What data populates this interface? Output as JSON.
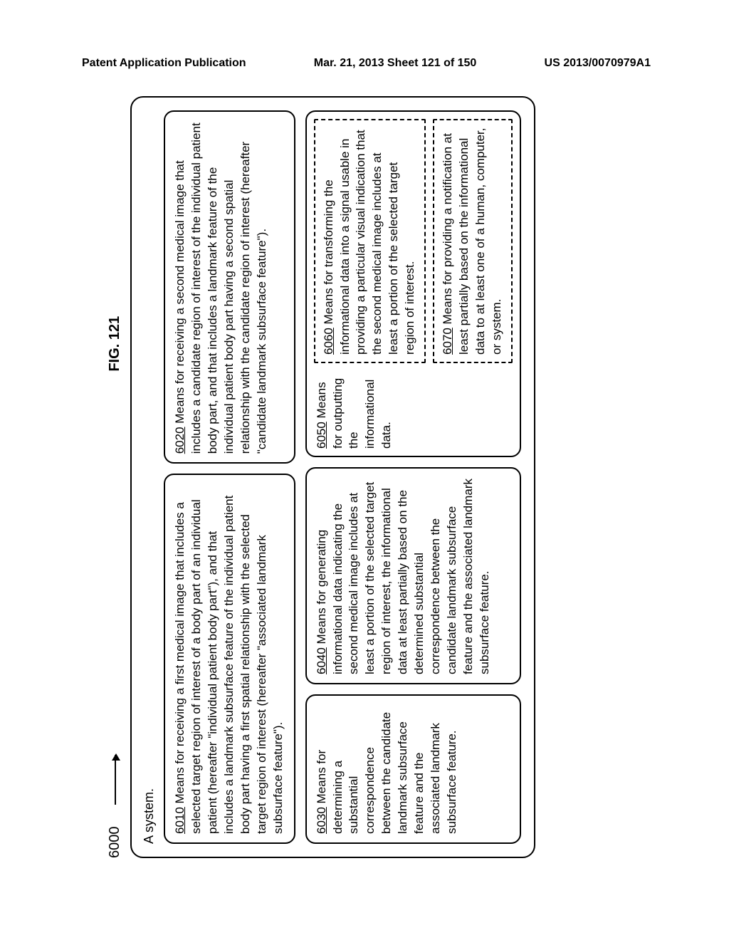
{
  "header": {
    "left": "Patent Application Publication",
    "center": "Mar. 21, 2013  Sheet 121 of 150",
    "right": "US 2013/0070979A1"
  },
  "figure": {
    "ref": "6000",
    "title": "FIG. 121",
    "system_label": "A system."
  },
  "box6010": {
    "num": "6010",
    "text": "  Means for receiving a first medical image that includes a selected target region of interest  of a body part of an individual patient (hereafter \"individual patient body part\"), and that includes a landmark subsurface feature of the individual patient body part having a first spatial relationship with the selected target region of interest (hereafter \"associated landmark subsurface feature\")."
  },
  "box6020": {
    "num": "6020",
    "text": "  Means for receiving a second medical image that includes a candidate region of interest of the individual patient body part, and that includes a landmark feature of the individual patient body part having a second spatial relationship with the candidate region of interest (hereafter \"candidate landmark subsurface feature\")."
  },
  "box6030": {
    "num": "6030",
    "text": "  Means for determining a substantial correspondence between the candidate landmark subsurface feature and the associated landmark subsurface feature."
  },
  "box6040": {
    "num": "6040",
    "text": "  Means for generating informational data indicating the second medical image includes at least a portion of the selected target region of interest, the informational data at least partially based on the determined substantial correspondence between the candidate landmark subsurface feature and the associated landmark subsurface feature."
  },
  "box6050": {
    "num": "6050",
    "text": " Means for outputting the informational data."
  },
  "box6060": {
    "num": "6060",
    "text": "  Means for transforming the informational data into a signal usable in providing a particular visual indication that the second medical image includes at least a portion of the selected target region of interest."
  },
  "box6070": {
    "num": "6070",
    "text": "  Means for providing a notification at least partially based on the informational data to at least one of a human, computer, or system."
  }
}
